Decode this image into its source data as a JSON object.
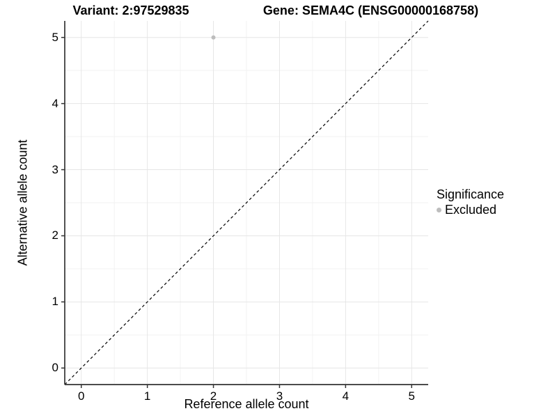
{
  "header": {
    "variant_title": "Variant: 2:97529835",
    "gene_title": "Gene: SEMA4C (ENSG00000168758)"
  },
  "chart_data": {
    "type": "scatter",
    "title_left": "Variant: 2:97529835",
    "title_right": "Gene: SEMA4C (ENSG00000168758)",
    "xlabel": "Reference allele count",
    "ylabel": "Alternative allele count",
    "xlim": [
      -0.25,
      5.25
    ],
    "ylim": [
      -0.25,
      5.25
    ],
    "x_ticks": [
      0,
      1,
      2,
      3,
      4,
      5
    ],
    "y_ticks": [
      0,
      1,
      2,
      3,
      4,
      5
    ],
    "minor_breaks": [
      0.5,
      1.5,
      2.5,
      3.5,
      4.5
    ],
    "grid": true,
    "points": [
      {
        "x": 2,
        "y": 5,
        "series": "Excluded"
      }
    ],
    "reference_line": {
      "kind": "abline",
      "slope": 1,
      "intercept": 0,
      "style": "dashed",
      "color": "#000000"
    },
    "legend": {
      "title": "Significance",
      "position": "right",
      "entries": [
        {
          "label": "Excluded",
          "color": "#bdbdbd"
        }
      ]
    },
    "colors": {
      "point_excluded": "#bdbdbd",
      "grid_major": "#e6e6e6",
      "grid_minor": "#f2f2f2",
      "axis_line": "#333333",
      "tick_mark": "#333333",
      "text": "#000000",
      "background": "#ffffff"
    }
  }
}
